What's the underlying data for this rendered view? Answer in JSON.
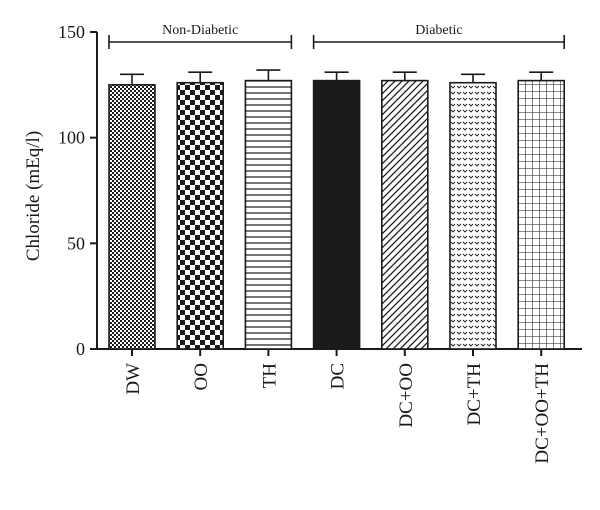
{
  "chart_data": {
    "type": "bar",
    "title": "",
    "xlabel": "",
    "ylabel": "Chloride (mEq/l)",
    "ylim": [
      0,
      150
    ],
    "yticks": [
      0,
      50,
      100,
      150
    ],
    "grid": false,
    "categories": [
      "DW",
      "OO",
      "TH",
      "DC",
      "DC+OO",
      "DC+TH",
      "DC+OO+TH"
    ],
    "values": [
      125,
      126,
      127,
      127,
      127,
      126,
      127
    ],
    "errors": [
      5,
      5,
      5,
      4,
      4,
      4,
      4
    ],
    "patterns": [
      "fine-checker",
      "checker",
      "horizontal-lines",
      "solid",
      "diagonal-lines",
      "dots",
      "grid"
    ],
    "groups": [
      {
        "label": "Non-Diabetic",
        "from": 0,
        "to": 2
      },
      {
        "label": "Diabetic",
        "from": 3,
        "to": 6
      }
    ],
    "colors": {
      "ink": "#1a1a1a",
      "background": "#ffffff"
    }
  }
}
